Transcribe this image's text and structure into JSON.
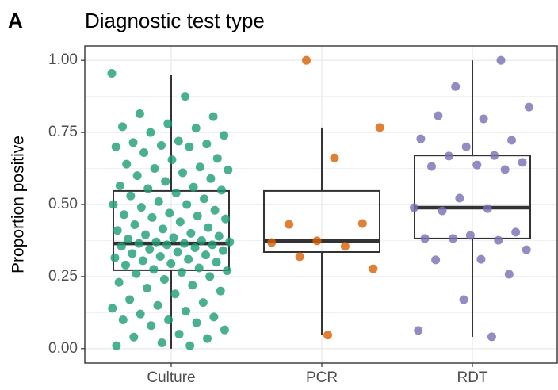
{
  "chart_data": {
    "type": "box",
    "panel_label": "A",
    "title": "Diagnostic test type",
    "ylabel": "Proportion positive",
    "categories": [
      "Culture",
      "PCR",
      "RDT"
    ],
    "ylim": [
      -0.05,
      1.05
    ],
    "yticks": [
      {
        "value": 0,
        "label": "0.00"
      },
      {
        "value": 0.25,
        "label": "0.25"
      },
      {
        "value": 0.5,
        "label": "0.50"
      },
      {
        "value": 0.75,
        "label": "0.75"
      },
      {
        "value": 1,
        "label": "1.00"
      }
    ],
    "grid": true,
    "boxes": [
      {
        "min": 0.0,
        "q1": 0.272,
        "median": 0.365,
        "q3": 0.547,
        "max": 0.95
      },
      {
        "min": 0.047,
        "q1": 0.335,
        "median": 0.374,
        "q3": 0.547,
        "max": 0.767
      },
      {
        "min": 0.041,
        "q1": 0.382,
        "median": 0.489,
        "q3": 0.67,
        "max": 1.0
      }
    ],
    "colors": [
      "#1b9e77",
      "#d95f02",
      "#7570b3"
    ],
    "points": [
      [
        0.955,
        0.875,
        0.815,
        0.805,
        0.78,
        0.77,
        0.765,
        0.75,
        0.74,
        0.72,
        0.715,
        0.71,
        0.705,
        0.7,
        0.7,
        0.68,
        0.66,
        0.655,
        0.64,
        0.63,
        0.625,
        0.62,
        0.61,
        0.6,
        0.59,
        0.58,
        0.565,
        0.56,
        0.555,
        0.55,
        0.54,
        0.53,
        0.52,
        0.51,
        0.5,
        0.5,
        0.49,
        0.48,
        0.47,
        0.465,
        0.46,
        0.455,
        0.45,
        0.44,
        0.43,
        0.42,
        0.415,
        0.41,
        0.4,
        0.395,
        0.39,
        0.385,
        0.38,
        0.375,
        0.37,
        0.37,
        0.365,
        0.365,
        0.36,
        0.36,
        0.355,
        0.35,
        0.345,
        0.34,
        0.335,
        0.33,
        0.325,
        0.32,
        0.315,
        0.31,
        0.305,
        0.3,
        0.295,
        0.29,
        0.28,
        0.275,
        0.27,
        0.265,
        0.26,
        0.25,
        0.24,
        0.23,
        0.22,
        0.21,
        0.2,
        0.19,
        0.17,
        0.16,
        0.15,
        0.14,
        0.13,
        0.12,
        0.11,
        0.1,
        0.1,
        0.09,
        0.08,
        0.065,
        0.05,
        0.04,
        0.035,
        0.02,
        0.01,
        0.01
      ],
      [
        1.0,
        0.767,
        0.662,
        0.431,
        0.434,
        0.374,
        0.368,
        0.355,
        0.319,
        0.277,
        0.047
      ],
      [
        1.0,
        0.909,
        0.838,
        0.797,
        0.808,
        0.723,
        0.7,
        0.728,
        0.67,
        0.668,
        0.646,
        0.637,
        0.632,
        0.621,
        0.522,
        0.489,
        0.486,
        0.478,
        0.404,
        0.393,
        0.382,
        0.376,
        0.382,
        0.343,
        0.31,
        0.308,
        0.258,
        0.17,
        0.063,
        0.041
      ]
    ]
  }
}
